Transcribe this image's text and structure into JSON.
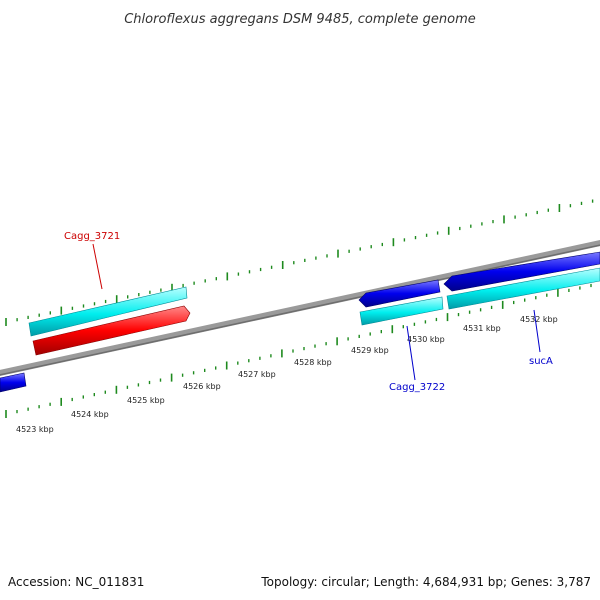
{
  "title": "Chloroflexus aggregans DSM 9485, complete genome",
  "colors": {
    "backbone": "#8a8a8a",
    "tick": "#1e8a1e",
    "forward_cds": "#ff0000",
    "reverse_cds": "#0000ee",
    "forward_gene": "#00e5ee",
    "reverse_gene": "#00e5ee",
    "label_red": "#cc0000",
    "label_blue": "#0000cc"
  },
  "kbp_labels": [
    "4523 kbp",
    "4524 kbp",
    "4525 kbp",
    "4526 kbp",
    "4527 kbp",
    "4528 kbp",
    "4529 kbp",
    "4530 kbp",
    "4531 kbp",
    "4532 kbp"
  ],
  "gene_labels": {
    "cagg3721": "Cagg_3721",
    "cagg3722": "Cagg_3722",
    "sucA": "sucA"
  },
  "footer": {
    "accession": "Accession: NC_011831",
    "summary": "Topology: circular; Length: 4,684,931 bp; Genes: 3,787"
  }
}
